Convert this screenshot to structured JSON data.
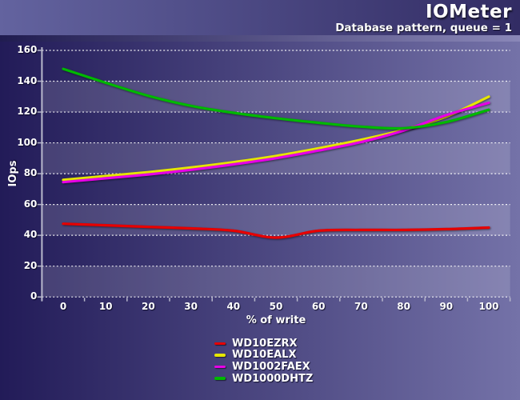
{
  "header": {
    "title": "IOMeter",
    "subtitle": "Database pattern, queue = 1"
  },
  "chart_data": {
    "type": "line",
    "title": "IOMeter",
    "subtitle": "Database pattern, queue = 1",
    "xlabel": "% of write",
    "ylabel": "IOps",
    "x": [
      0,
      10,
      20,
      30,
      40,
      50,
      60,
      70,
      80,
      90,
      100
    ],
    "ylim": [
      0,
      160
    ],
    "ytick_step": 20,
    "grid": "horizontal-dotted-white",
    "legend_position": "bottom-center",
    "series": [
      {
        "name": "WD10EZRX",
        "color": "#e60000",
        "values": [
          47.5,
          46.5,
          45.5,
          44.5,
          43,
          38.5,
          43,
          43.5,
          43.5,
          44,
          45
        ]
      },
      {
        "name": "WD10EALX",
        "color": "#e6e600",
        "values": [
          76,
          78.5,
          81,
          84,
          87.5,
          91.5,
          96.5,
          102,
          108.5,
          117,
          130
        ]
      },
      {
        "name": "WD1002FAEX",
        "color": "#e600e6",
        "values": [
          74.5,
          77,
          79.5,
          82.5,
          86,
          90,
          95,
          100.5,
          108,
          118,
          126
        ]
      },
      {
        "name": "WD1000DHTZ",
        "color": "#00b800",
        "values": [
          148,
          139,
          130.5,
          124,
          119.5,
          116,
          113,
          110.5,
          109.5,
          113.5,
          121.5
        ]
      }
    ]
  },
  "colors": {
    "header_gradient_left": "#63639f",
    "header_gradient_right": "#322c64",
    "body_gradient_left": "#221b58",
    "body_gradient_right": "#7472a8",
    "band_overlay": "rgba(255,255,255,0.14)",
    "axis_line": "#b8b8cc",
    "gridline": "#ffffff",
    "text": "#ffffff"
  }
}
